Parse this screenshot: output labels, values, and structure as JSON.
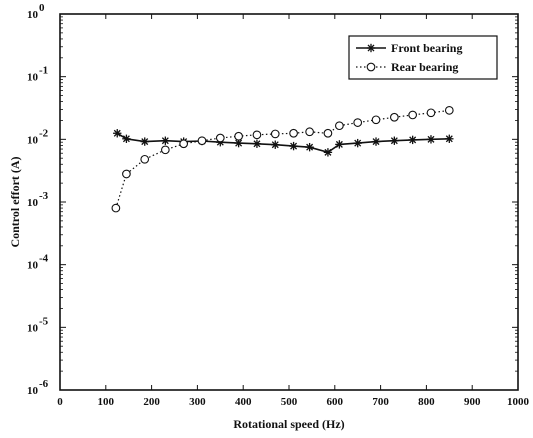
{
  "chart_data": {
    "type": "line",
    "xlabel": "Rotational speed (Hz)",
    "ylabel": "Control effort (A)",
    "xlim": [
      0,
      1000
    ],
    "ylim": [
      1e-06,
      1
    ],
    "yscale": "log",
    "grid": false,
    "legend_position": "top-right",
    "x_ticks": [
      "0",
      "100",
      "200",
      "300",
      "400",
      "500",
      "600",
      "700",
      "800",
      "900",
      "1000"
    ],
    "x_tick_values": [
      0,
      100,
      200,
      300,
      400,
      500,
      600,
      700,
      800,
      900,
      1000
    ],
    "y_ticks": [
      {
        "base": "10",
        "exp": "-6",
        "value": 1e-06
      },
      {
        "base": "10",
        "exp": "-5",
        "value": 1e-05
      },
      {
        "base": "10",
        "exp": "-4",
        "value": 0.0001
      },
      {
        "base": "10",
        "exp": "-3",
        "value": 0.001
      },
      {
        "base": "10",
        "exp": "-2",
        "value": 0.01
      },
      {
        "base": "10",
        "exp": "-1",
        "value": 0.1
      },
      {
        "base": "10",
        "exp": "0",
        "value": 1
      }
    ],
    "series": [
      {
        "name": "Front bearing",
        "marker": "star",
        "line": "solid",
        "color": "#111111",
        "x": [
          125,
          145,
          185,
          230,
          270,
          310,
          350,
          390,
          430,
          470,
          510,
          545,
          585,
          610,
          650,
          690,
          730,
          770,
          810,
          850
        ],
        "y": [
          0.0125,
          0.0102,
          0.0092,
          0.0095,
          0.0092,
          0.0094,
          0.009,
          0.0087,
          0.0085,
          0.0082,
          0.0078,
          0.0075,
          0.0062,
          0.0083,
          0.0087,
          0.0092,
          0.0095,
          0.0098,
          0.01,
          0.0102
        ]
      },
      {
        "name": "Rear bearing",
        "marker": "circle",
        "line": "dotted",
        "color": "#111111",
        "x": [
          122,
          145,
          185,
          230,
          270,
          310,
          350,
          390,
          430,
          470,
          510,
          545,
          585,
          610,
          650,
          690,
          730,
          770,
          810,
          850
        ],
        "y": [
          0.0008,
          0.0028,
          0.0048,
          0.0068,
          0.0085,
          0.0095,
          0.0105,
          0.0112,
          0.0118,
          0.0122,
          0.0125,
          0.0132,
          0.0125,
          0.0165,
          0.0185,
          0.0205,
          0.0225,
          0.0245,
          0.0265,
          0.029
        ]
      }
    ]
  }
}
